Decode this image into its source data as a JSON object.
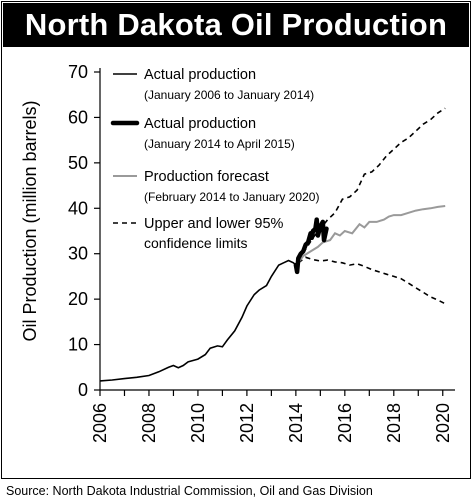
{
  "chart_data": {
    "type": "line",
    "title": "North Dakota Oil Production",
    "ylabel": "Oil Production (million barrels)",
    "xlabel": "",
    "xlim": [
      2006,
      2020.5
    ],
    "ylim": [
      0,
      70
    ],
    "xticks": [
      2006,
      2008,
      2010,
      2012,
      2014,
      2016,
      2018,
      2020
    ],
    "xtick_labels": [
      "2006",
      "2008",
      "2010",
      "2012",
      "2014",
      "2016",
      "2018",
      "2020"
    ],
    "yticks": [
      0,
      10,
      20,
      30,
      40,
      50,
      60,
      70
    ],
    "ytick_labels": [
      "0",
      "10",
      "20",
      "30",
      "40",
      "50",
      "60",
      "70"
    ],
    "legend": [
      {
        "line1": "Actual production",
        "line2": "(January 2006 to January 2014)",
        "style": "thin-black"
      },
      {
        "line1": "Actual production",
        "line2": "(January 2014 to April 2015)",
        "style": "thick-black"
      },
      {
        "line1": "Production forecast",
        "line2": "(February 2014 to January 2020)",
        "style": "gray"
      },
      {
        "line1": "Upper and lower 95%",
        "line2": "confidence limits",
        "style": "dashed"
      }
    ],
    "legend_position": "top-left",
    "series": [
      {
        "style": "thin-black",
        "x": [
          2006.0,
          2006.5,
          2007.0,
          2007.5,
          2008.0,
          2008.4,
          2008.8,
          2009.0,
          2009.2,
          2009.4,
          2009.6,
          2009.8,
          2010.0,
          2010.3,
          2010.5,
          2010.8,
          2011.0,
          2011.2,
          2011.5,
          2011.8,
          2012.0,
          2012.3,
          2012.5,
          2012.8,
          2013.0,
          2013.3,
          2013.5,
          2013.7,
          2013.9,
          2014.0
        ],
        "y": [
          2.0,
          2.2,
          2.5,
          2.8,
          3.2,
          4.0,
          5.0,
          5.4,
          4.9,
          5.4,
          6.2,
          6.5,
          6.8,
          7.8,
          9.2,
          9.7,
          9.5,
          11.0,
          13.0,
          16.0,
          18.5,
          21.0,
          22.0,
          23.0,
          25.0,
          27.5,
          28.0,
          28.5,
          28.0,
          27.5
        ]
      },
      {
        "style": "thick-black",
        "x": [
          2014.0,
          2014.05,
          2014.1,
          2014.2,
          2014.3,
          2014.4,
          2014.5,
          2014.6,
          2014.65,
          2014.7,
          2014.8,
          2014.85,
          2014.9,
          2015.0,
          2015.1,
          2015.15,
          2015.25
        ],
        "y": [
          27.5,
          26.0,
          29.0,
          30.0,
          30.5,
          32.0,
          32.5,
          34.5,
          33.5,
          35.0,
          35.5,
          37.5,
          34.0,
          36.0,
          37.0,
          33.0,
          35.5
        ]
      },
      {
        "style": "gray",
        "x": [
          2014.1,
          2014.3,
          2014.6,
          2014.9,
          2015.1,
          2015.4,
          2015.6,
          2015.8,
          2016.0,
          2016.3,
          2016.6,
          2016.8,
          2017.0,
          2017.3,
          2017.6,
          2017.8,
          2018.0,
          2018.3,
          2018.6,
          2018.9,
          2019.2,
          2019.5,
          2019.8,
          2020.1
        ],
        "y": [
          28.0,
          29.5,
          30.5,
          31.5,
          32.5,
          33.0,
          34.5,
          34.0,
          35.0,
          34.5,
          36.5,
          35.8,
          37.0,
          37.0,
          37.5,
          38.2,
          38.5,
          38.5,
          39.0,
          39.5,
          39.8,
          40.0,
          40.3,
          40.5
        ]
      },
      {
        "style": "dashed",
        "x": [
          2014.1,
          2014.4,
          2014.7,
          2015.0,
          2015.3,
          2015.6,
          2015.9,
          2016.2,
          2016.5,
          2016.8,
          2017.1,
          2017.4,
          2017.7,
          2018.0,
          2018.3,
          2018.6,
          2018.9,
          2019.2,
          2019.5,
          2019.8,
          2020.1
        ],
        "y": [
          28.5,
          31.0,
          33.5,
          35.5,
          37.5,
          39.0,
          42.0,
          42.5,
          44.0,
          47.5,
          48.0,
          49.5,
          51.5,
          53.0,
          54.5,
          55.5,
          57.0,
          58.5,
          59.5,
          61.0,
          62.0
        ]
      },
      {
        "style": "dashed",
        "x": [
          2014.1,
          2014.4,
          2014.7,
          2015.0,
          2015.3,
          2015.6,
          2015.9,
          2016.2,
          2016.5,
          2016.8,
          2017.1,
          2017.4,
          2017.7,
          2018.0,
          2018.3,
          2018.6,
          2018.9,
          2019.2,
          2019.5,
          2019.8,
          2020.1
        ],
        "y": [
          28.0,
          29.2,
          28.7,
          28.4,
          28.6,
          28.2,
          28.0,
          27.5,
          27.8,
          27.2,
          26.5,
          26.0,
          25.5,
          25.0,
          24.5,
          23.5,
          22.5,
          21.5,
          20.5,
          19.8,
          19.0
        ]
      }
    ]
  },
  "source": "Source: North Dakota Industrial Commission, Oil and Gas Division"
}
